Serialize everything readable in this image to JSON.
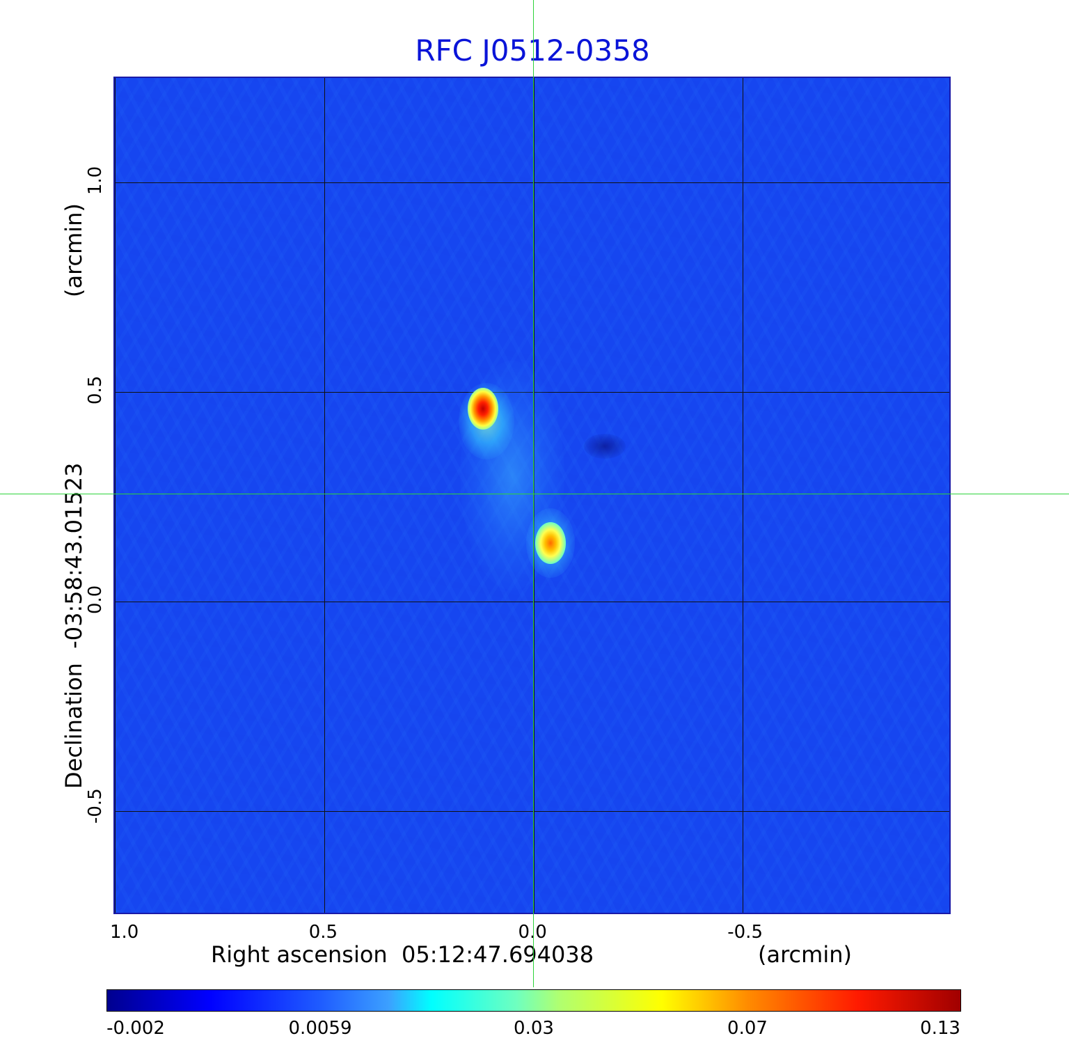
{
  "chart_data": {
    "type": "heatmap",
    "title": "RFC J0512-0358",
    "xlabel": "Right ascension  05:12:47.694038",
    "xunit": "(arcmin)",
    "ylabel": "Declination  -03:58:43.01523",
    "yunit": "(arcmin)",
    "x_ticks": [
      "1.0",
      "0.5",
      "0.0",
      "-0.5"
    ],
    "y_ticks": [
      "1.0",
      "0.5",
      "0.0",
      "-0.5"
    ],
    "xlim": [
      1.0,
      -1.0
    ],
    "ylim": [
      -0.75,
      1.25
    ],
    "grid": true,
    "colormap": "jet",
    "colorbar_ticks": [
      "-0.002",
      "0.0059",
      "0.03",
      "0.07",
      "0.13"
    ],
    "colorbar_range": [
      -0.002,
      0.13
    ],
    "crosshair": {
      "x": 0.0,
      "y": 0.28,
      "color": "#2dd43a"
    },
    "features": [
      {
        "name": "component 1",
        "x": 0.12,
        "y": 0.46,
        "peak": 0.13
      },
      {
        "name": "component 2",
        "x": -0.04,
        "y": 0.14,
        "peak": 0.08
      },
      {
        "name": "jet emission",
        "x": 0.05,
        "y": 0.3,
        "peak": 0.012
      }
    ]
  }
}
